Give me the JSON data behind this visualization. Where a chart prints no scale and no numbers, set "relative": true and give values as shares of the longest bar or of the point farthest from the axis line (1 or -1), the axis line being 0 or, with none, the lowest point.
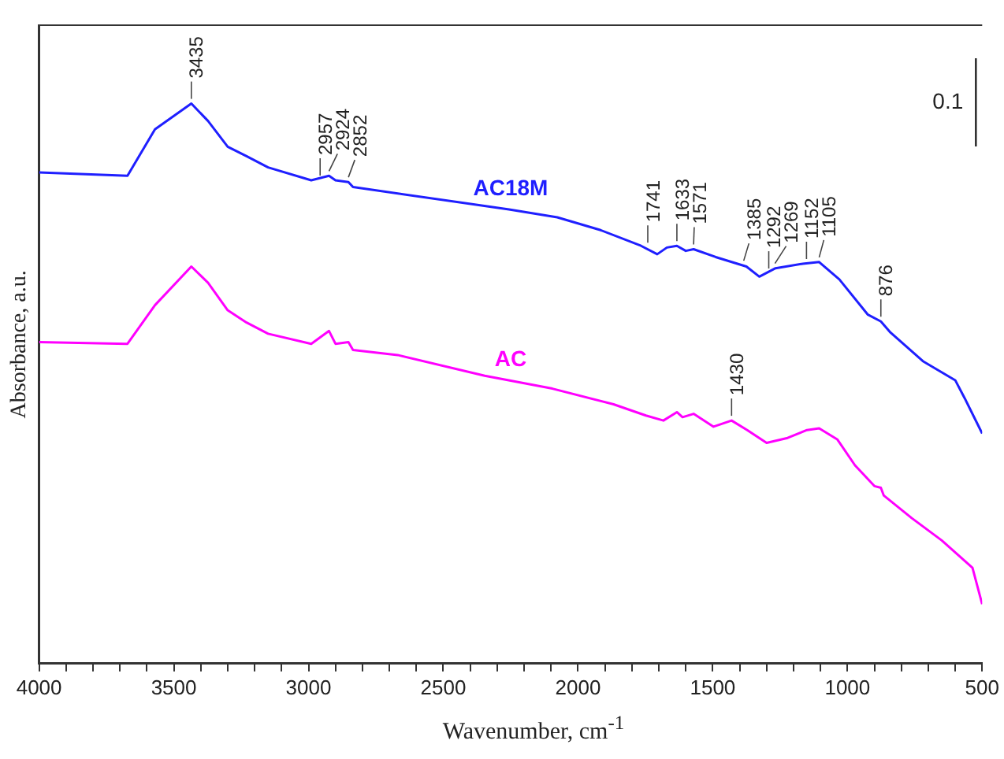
{
  "chart_data": {
    "type": "line",
    "relative": true,
    "xlabel": "Wavenumber, cm$^{-1}$",
    "ylabel": "Absorbance, a.u.",
    "xlim": [
      4000,
      500
    ],
    "xticks": [
      4000,
      {
        "value": 3900,
        "label": null
      },
      {
        "value": 3800,
        "label": null
      },
      {
        "value": 3700,
        "label": null
      },
      {
        "value": 3600,
        "label": null
      },
      3500,
      {
        "value": 3400,
        "label": null
      },
      {
        "value": 3300,
        "label": null
      },
      {
        "value": 3200,
        "label": null
      },
      {
        "value": 3100,
        "label": null
      },
      3000,
      {
        "value": 2900,
        "label": null
      },
      {
        "value": 2800,
        "label": null
      },
      {
        "value": 2700,
        "label": null
      },
      {
        "value": 2600,
        "label": null
      },
      2500,
      {
        "value": 2400,
        "label": null
      },
      {
        "value": 2300,
        "label": null
      },
      {
        "value": 2200,
        "label": null
      },
      {
        "value": 2100,
        "label": null
      },
      2000,
      {
        "value": 1900,
        "label": null
      },
      {
        "value": 1800,
        "label": null
      },
      {
        "value": 1700,
        "label": null
      },
      {
        "value": 1600,
        "label": null
      },
      1500,
      {
        "value": 1400,
        "label": null
      },
      {
        "value": 1300,
        "label": null
      },
      {
        "value": 1200,
        "label": null
      },
      {
        "value": 1100,
        "label": null
      },
      1000,
      {
        "value": 900,
        "label": null
      },
      {
        "value": 800,
        "label": null
      },
      {
        "value": 700,
        "label": null
      },
      {
        "value": 600,
        "label": null
      },
      500
    ],
    "grid": false,
    "legend": false,
    "marker": "none",
    "line_style": "solid",
    "series": [
      {
        "name": "AC18M",
        "color": "#1f1fff",
        "x": [
          4000,
          3672,
          3570,
          3435,
          3373,
          3300,
          3230,
          3150,
          2990,
          2924,
          2900,
          2852,
          2835,
          2256,
          2077,
          1916,
          1766,
          1706,
          1670,
          1633,
          1600,
          1571,
          1489,
          1375,
          1327,
          1267,
          1166,
          1105,
          1030,
          924,
          876,
          840,
          720,
          600,
          565,
          500
        ],
        "values": [
          0.877,
          0.871,
          0.954,
          1.0,
          0.969,
          0.923,
          0.906,
          0.886,
          0.863,
          0.871,
          0.863,
          0.86,
          0.851,
          0.811,
          0.797,
          0.774,
          0.746,
          0.731,
          0.743,
          0.746,
          0.737,
          0.74,
          0.726,
          0.709,
          0.691,
          0.706,
          0.714,
          0.717,
          0.686,
          0.623,
          0.611,
          0.591,
          0.54,
          0.506,
          0.474,
          0.411
        ]
      },
      {
        "name": "AC",
        "color": "#ff00ff",
        "x": [
          4000,
          3672,
          3570,
          3435,
          3373,
          3300,
          3230,
          3150,
          2990,
          2924,
          2900,
          2852,
          2835,
          2669,
          2346,
          2095,
          1868,
          1748,
          1683,
          1633,
          1612,
          1571,
          1497,
          1430,
          1372,
          1300,
          1222,
          1150,
          1105,
          1037,
          972,
          900,
          876,
          865,
          762,
          650,
          536,
          500
        ],
        "values": [
          0.574,
          0.571,
          0.64,
          0.709,
          0.68,
          0.631,
          0.609,
          0.589,
          0.571,
          0.594,
          0.571,
          0.574,
          0.56,
          0.551,
          0.514,
          0.491,
          0.463,
          0.443,
          0.434,
          0.449,
          0.44,
          0.446,
          0.423,
          0.434,
          0.417,
          0.394,
          0.403,
          0.417,
          0.42,
          0.4,
          0.354,
          0.317,
          0.314,
          0.3,
          0.26,
          0.22,
          0.171,
          0.106
        ]
      }
    ],
    "annotations": [
      {
        "text": "3435",
        "x": 3435,
        "y": 1.0
      },
      {
        "text": "2957",
        "x": 2957,
        "y": 0.863
      },
      {
        "text": "2924",
        "x": 2924,
        "y": 0.871
      },
      {
        "text": "2852",
        "x": 2852,
        "y": 0.86
      },
      {
        "text": "1741",
        "x": 1741,
        "y": 0.743
      },
      {
        "text": "1633",
        "x": 1633,
        "y": 0.746
      },
      {
        "text": "1571",
        "x": 1571,
        "y": 0.74
      },
      {
        "text": "1385",
        "x": 1385,
        "y": 0.711
      },
      {
        "text": "1292",
        "x": 1292,
        "y": 0.697
      },
      {
        "text": "1269",
        "x": 1269,
        "y": 0.706
      },
      {
        "text": "1152",
        "x": 1152,
        "y": 0.714
      },
      {
        "text": "1105",
        "x": 1105,
        "y": 0.717
      },
      {
        "text": "876",
        "x": 876,
        "y": 0.611
      },
      {
        "text": "1430",
        "x": 1430,
        "y": 0.434
      },
      "0.1"
    ]
  }
}
